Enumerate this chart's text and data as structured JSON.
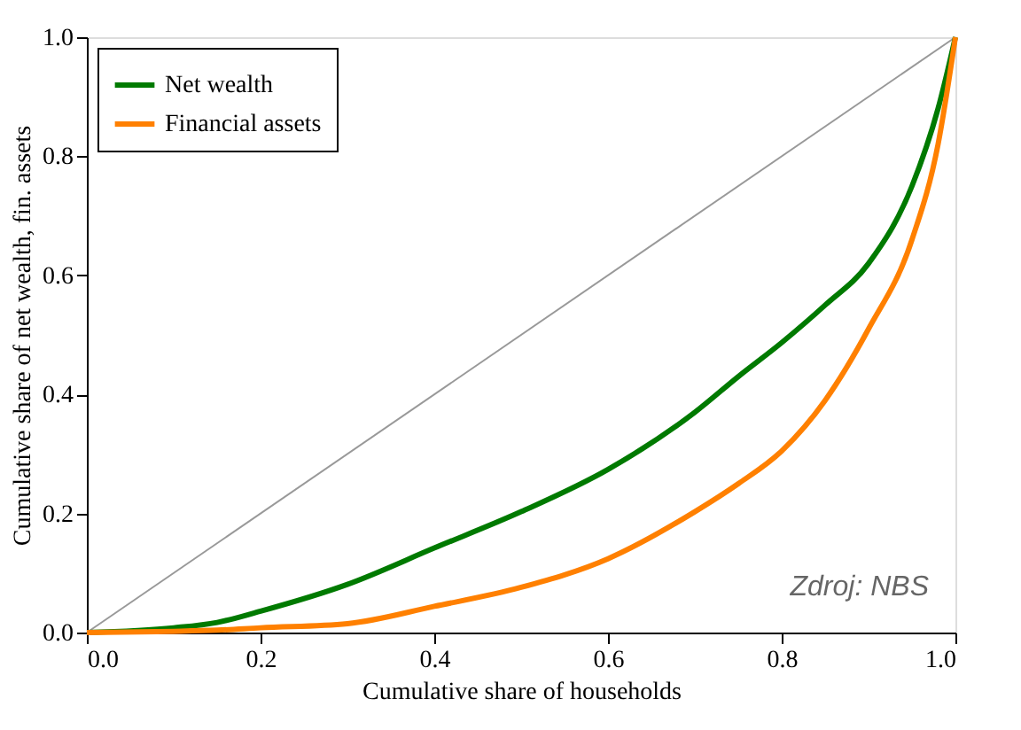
{
  "chart_data": {
    "type": "line",
    "xlabel": "Cumulative share of households",
    "ylabel": "Cumulative share of net wealth, fin. assets",
    "xlim": [
      0,
      1
    ],
    "ylim": [
      0,
      1
    ],
    "xticks": [
      {
        "value": 0,
        "label": "0.0"
      },
      {
        "value": 0.2,
        "label": "0.2"
      },
      {
        "value": 0.4,
        "label": "0.4"
      },
      {
        "value": 0.6,
        "label": "0.6"
      },
      {
        "value": 0.8,
        "label": "0.8"
      },
      {
        "value": 1,
        "label": "1.0"
      }
    ],
    "yticks": [
      {
        "value": 0,
        "label": "0.0"
      },
      0.2,
      0.4,
      0.6,
      0.8,
      {
        "value": 1,
        "label": "1.0"
      }
    ],
    "x": [
      0,
      0.1,
      0.15,
      0.2,
      0.3,
      0.4,
      0.5,
      0.6,
      0.7,
      0.75,
      0.8,
      0.85,
      0.9,
      0.95,
      0.98,
      1
    ],
    "series": [
      {
        "name": "Net wealth",
        "color": "#007a00",
        "values": [
          0,
          0.008,
          0.017,
          0.036,
          0.081,
          0.142,
          0.203,
          0.274,
          0.37,
          0.43,
          0.487,
          0.55,
          0.62,
          0.75,
          0.88,
          1
        ]
      },
      {
        "name": "Financial assets",
        "color": "#ff8000",
        "values": [
          0,
          0.002,
          0.004,
          0.008,
          0.015,
          0.044,
          0.076,
          0.124,
          0.203,
          0.25,
          0.305,
          0.39,
          0.51,
          0.66,
          0.82,
          1
        ]
      },
      {
        "type": "line",
        "color": "#999999",
        "x": [
          0,
          1
        ],
        "values": [
          0,
          1
        ]
      }
    ],
    "annotations": [
      "Zdroj: NBS"
    ],
    "grid": false,
    "legend": "top left",
    "line_style": "solid",
    "marker": "none"
  }
}
